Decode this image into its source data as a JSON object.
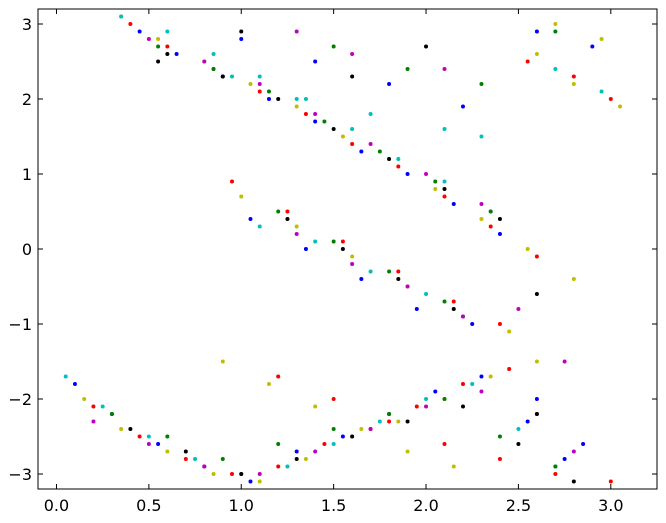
{
  "chart_data": {
    "type": "scatter",
    "title": "",
    "xlabel": "",
    "ylabel": "",
    "xlim": [
      -0.1,
      3.25
    ],
    "ylim": [
      -3.2,
      3.2
    ],
    "grid": false,
    "x_ticks": [
      {
        "value": 0.0,
        "label": "0.0"
      },
      {
        "value": 0.5,
        "label": "0.5"
      },
      {
        "value": 1.0,
        "label": "1.0"
      },
      {
        "value": 1.5,
        "label": "1.5"
      },
      {
        "value": 2.0,
        "label": "2.0"
      },
      {
        "value": 2.5,
        "label": "2.5"
      },
      {
        "value": 3.0,
        "label": "3.0"
      }
    ],
    "y_ticks": [
      {
        "value": 3,
        "label": "3"
      },
      {
        "value": 2,
        "label": "2"
      },
      {
        "value": 1,
        "label": "1"
      },
      {
        "value": 0,
        "label": "0"
      },
      {
        "value": -1,
        "label": "−1"
      },
      {
        "value": -2,
        "label": "−2"
      },
      {
        "value": -3,
        "label": "−3"
      }
    ],
    "colors": [
      "#bfbf00",
      "#ff0000",
      "#0000ff",
      "#00bfbf",
      "#bf00bf",
      "#007f00",
      "#000000"
    ],
    "series": [
      {
        "color": "#bfbf00",
        "x": [
          0.35,
          0.55,
          0.8,
          1.05,
          1.3,
          1.55,
          1.8,
          2.05,
          2.3,
          2.55,
          2.8,
          1.0,
          1.3,
          1.6,
          1.9,
          2.2,
          2.45,
          0.15,
          0.35,
          0.6,
          0.85,
          1.1,
          1.35,
          1.6,
          1.85,
          2.1,
          2.35,
          2.6,
          0.9,
          1.15,
          1.4,
          1.65,
          1.9,
          2.15,
          2.6,
          2.8,
          3.05,
          2.7,
          2.95
        ],
        "y": [
          3.1,
          2.8,
          2.5,
          2.2,
          1.9,
          1.5,
          1.2,
          0.8,
          0.4,
          0.0,
          -0.4,
          0.7,
          0.3,
          -0.1,
          -0.5,
          -0.9,
          -1.1,
          -2.0,
          -2.4,
          -2.7,
          -3.0,
          -3.1,
          -2.8,
          -2.5,
          -2.3,
          -2.0,
          -1.7,
          -1.5,
          -1.5,
          -1.8,
          -2.1,
          -2.4,
          -2.7,
          -2.9,
          2.6,
          2.2,
          1.9,
          3.0,
          2.8
        ]
      },
      {
        "color": "#ff0000",
        "x": [
          0.4,
          0.6,
          0.85,
          1.1,
          1.35,
          1.6,
          1.85,
          2.1,
          2.35,
          2.6,
          0.95,
          1.25,
          1.55,
          1.85,
          2.15,
          2.4,
          0.2,
          0.45,
          0.7,
          0.95,
          1.2,
          1.45,
          1.7,
          1.95,
          2.2,
          2.45,
          1.2,
          1.5,
          1.8,
          2.1,
          2.4,
          2.7,
          3.0,
          2.55,
          2.8,
          3.0
        ],
        "y": [
          3.0,
          2.7,
          2.4,
          2.1,
          1.8,
          1.4,
          1.1,
          0.7,
          0.3,
          -0.1,
          0.9,
          0.5,
          0.1,
          -0.3,
          -0.7,
          -1.0,
          -2.1,
          -2.5,
          -2.8,
          -3.0,
          -2.9,
          -2.6,
          -2.4,
          -2.1,
          -1.8,
          -1.6,
          -1.7,
          -2.0,
          -2.3,
          -2.6,
          -2.8,
          -3.0,
          -3.1,
          2.5,
          2.3,
          2.0
        ]
      },
      {
        "color": "#0000ff",
        "x": [
          0.45,
          0.65,
          0.9,
          1.15,
          1.4,
          1.65,
          1.9,
          2.15,
          2.4,
          1.05,
          1.35,
          1.65,
          1.95,
          2.25,
          0.1,
          0.3,
          0.55,
          0.8,
          1.05,
          1.3,
          1.55,
          1.8,
          2.05,
          2.3,
          2.55,
          2.75,
          1.0,
          1.4,
          1.8,
          2.2,
          2.6,
          2.9,
          2.6,
          2.85
        ],
        "y": [
          2.9,
          2.6,
          2.3,
          2.0,
          1.7,
          1.3,
          1.0,
          0.6,
          0.2,
          0.4,
          0.0,
          -0.4,
          -0.8,
          -1.0,
          -1.8,
          -2.2,
          -2.6,
          -2.9,
          -3.1,
          -2.7,
          -2.5,
          -2.2,
          -1.9,
          -1.7,
          -2.3,
          -2.8,
          2.8,
          2.5,
          2.2,
          1.9,
          2.9,
          2.7,
          -2.0,
          -2.6
        ]
      },
      {
        "color": "#00bfbf",
        "x": [
          0.35,
          0.6,
          0.85,
          1.1,
          1.35,
          1.6,
          1.85,
          2.1,
          2.35,
          1.1,
          1.4,
          1.7,
          2.0,
          2.2,
          0.05,
          0.25,
          0.5,
          0.75,
          1.0,
          1.25,
          1.5,
          1.75,
          2.0,
          2.25,
          2.5,
          2.7,
          0.95,
          1.3,
          1.7,
          2.1,
          2.3,
          2.7,
          2.95
        ],
        "y": [
          3.1,
          2.9,
          2.6,
          2.3,
          2.0,
          1.6,
          1.2,
          0.9,
          0.5,
          0.3,
          0.1,
          -0.3,
          -0.6,
          -0.9,
          -1.7,
          -2.1,
          -2.5,
          -2.8,
          -3.0,
          -2.9,
          -2.6,
          -2.3,
          -2.0,
          -1.8,
          -2.4,
          -2.9,
          2.3,
          2.0,
          1.8,
          1.6,
          1.5,
          2.4,
          2.1
        ]
      },
      {
        "color": "#bf00bf",
        "x": [
          0.5,
          0.8,
          1.1,
          1.4,
          1.7,
          2.0,
          2.3,
          2.5,
          2.75,
          1.3,
          1.6,
          1.9,
          2.2,
          0.2,
          0.5,
          0.8,
          1.1,
          1.4,
          1.7,
          2.0,
          2.3,
          2.6,
          2.8,
          1.3,
          1.6,
          2.1
        ],
        "y": [
          2.8,
          2.5,
          2.2,
          1.8,
          1.4,
          1.0,
          0.6,
          -0.8,
          -1.5,
          0.2,
          -0.2,
          -0.5,
          -0.9,
          -2.3,
          -2.6,
          -2.9,
          -3.0,
          -2.7,
          -2.4,
          -2.1,
          -1.9,
          -2.2,
          -2.7,
          2.9,
          2.6,
          2.4
        ]
      },
      {
        "color": "#007f00",
        "x": [
          0.55,
          0.85,
          1.15,
          1.45,
          1.75,
          2.05,
          2.35,
          1.2,
          1.5,
          1.8,
          2.1,
          0.3,
          0.6,
          0.9,
          1.2,
          1.5,
          1.8,
          2.1,
          2.4,
          2.7,
          1.5,
          1.9,
          2.3,
          2.7
        ],
        "y": [
          2.7,
          2.4,
          2.1,
          1.7,
          1.3,
          0.9,
          0.5,
          0.5,
          0.1,
          -0.3,
          -0.7,
          -2.2,
          -2.5,
          -2.8,
          -2.6,
          -2.4,
          -2.2,
          -2.0,
          -2.5,
          -2.9,
          2.7,
          2.4,
          2.2,
          2.9
        ]
      },
      {
        "color": "#000000",
        "x": [
          0.6,
          0.9,
          1.2,
          1.5,
          1.8,
          2.1,
          2.4,
          2.6,
          1.25,
          1.55,
          1.85,
          2.15,
          0.4,
          0.7,
          1.0,
          1.3,
          1.6,
          1.9,
          2.2,
          2.5,
          2.8,
          0.55,
          1.0,
          1.6,
          2.0,
          2.6
        ],
        "y": [
          2.6,
          2.3,
          2.0,
          1.6,
          1.2,
          0.8,
          0.4,
          -0.6,
          0.4,
          0.0,
          -0.4,
          -0.8,
          -2.4,
          -2.7,
          -3.0,
          -2.8,
          -2.5,
          -2.3,
          -2.1,
          -2.6,
          -3.1,
          2.5,
          2.9,
          2.3,
          2.7,
          -2.2
        ]
      }
    ]
  }
}
